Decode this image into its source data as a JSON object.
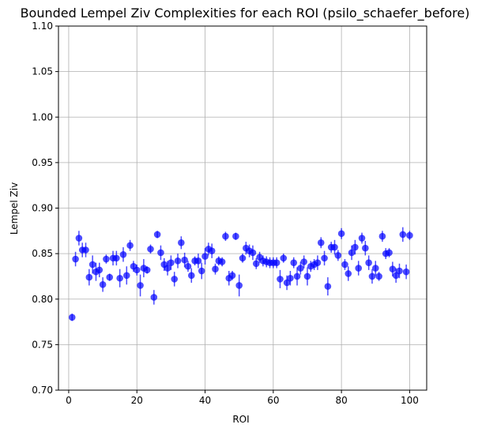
{
  "chart_data": {
    "type": "scatter",
    "title": "Bounded Lempel Ziv Complexities for each ROI (psilo_schaefer_before)",
    "xlabel": "ROI",
    "ylabel": "Lempel Ziv",
    "xlim": [
      -3,
      105
    ],
    "ylim": [
      0.7,
      1.1
    ],
    "xticks": [
      0,
      20,
      40,
      60,
      80,
      100
    ],
    "yticks": [
      0.7,
      0.75,
      0.8,
      0.85,
      0.9,
      0.95,
      1.0,
      1.05,
      1.1
    ],
    "ytick_labels": [
      "0.70",
      "0.75",
      "0.80",
      "0.85",
      "0.90",
      "0.95",
      "1.00",
      "1.05",
      "1.10"
    ],
    "grid": true,
    "marker_color": "#0000ff",
    "marker_alpha": 0.7,
    "error_bars": true,
    "x": [
      1,
      2,
      3,
      4,
      5,
      6,
      7,
      8,
      9,
      10,
      11,
      12,
      13,
      14,
      15,
      16,
      17,
      18,
      19,
      20,
      21,
      22,
      23,
      24,
      25,
      26,
      27,
      28,
      29,
      30,
      31,
      32,
      33,
      34,
      35,
      36,
      37,
      38,
      39,
      40,
      41,
      42,
      43,
      44,
      45,
      46,
      47,
      48,
      49,
      50,
      51,
      52,
      53,
      54,
      55,
      56,
      57,
      58,
      59,
      60,
      61,
      62,
      63,
      64,
      65,
      66,
      67,
      68,
      69,
      70,
      71,
      72,
      73,
      74,
      75,
      76,
      77,
      78,
      79,
      80,
      81,
      82,
      83,
      84,
      85,
      86,
      87,
      88,
      89,
      90,
      91,
      92,
      93,
      94,
      95,
      96,
      97,
      98,
      99,
      100
    ],
    "y": [
      0.78,
      0.844,
      0.867,
      0.854,
      0.854,
      0.824,
      0.838,
      0.83,
      0.832,
      0.816,
      0.844,
      0.824,
      0.845,
      0.845,
      0.823,
      0.849,
      0.826,
      0.859,
      0.836,
      0.832,
      0.815,
      0.834,
      0.832,
      0.855,
      0.802,
      0.871,
      0.851,
      0.838,
      0.834,
      0.84,
      0.822,
      0.842,
      0.862,
      0.843,
      0.836,
      0.826,
      0.842,
      0.842,
      0.831,
      0.847,
      0.855,
      0.853,
      0.833,
      0.842,
      0.841,
      0.869,
      0.823,
      0.826,
      0.869,
      0.815,
      0.845,
      0.856,
      0.853,
      0.851,
      0.839,
      0.846,
      0.842,
      0.841,
      0.84,
      0.84,
      0.84,
      0.822,
      0.845,
      0.818,
      0.823,
      0.84,
      0.825,
      0.834,
      0.841,
      0.825,
      0.836,
      0.838,
      0.84,
      0.862,
      0.845,
      0.814,
      0.857,
      0.857,
      0.848,
      0.872,
      0.838,
      0.828,
      0.851,
      0.857,
      0.834,
      0.867,
      0.856,
      0.84,
      0.825,
      0.834,
      0.825,
      0.869,
      0.85,
      0.851,
      0.833,
      0.826,
      0.831,
      0.871,
      0.83,
      0.87
    ],
    "yerr": [
      0.004,
      0.008,
      0.008,
      0.008,
      0.008,
      0.009,
      0.01,
      0.01,
      0.008,
      0.008,
      0.005,
      0.004,
      0.008,
      0.008,
      0.01,
      0.008,
      0.01,
      0.006,
      0.006,
      0.006,
      0.012,
      0.01,
      0.004,
      0.005,
      0.008,
      0.004,
      0.008,
      0.007,
      0.008,
      0.008,
      0.008,
      0.008,
      0.007,
      0.008,
      0.006,
      0.008,
      0.005,
      0.008,
      0.009,
      0.009,
      0.007,
      0.008,
      0.006,
      0.005,
      0.005,
      0.005,
      0.008,
      0.005,
      0.004,
      0.012,
      0.005,
      0.007,
      0.007,
      0.008,
      0.006,
      0.006,
      0.006,
      0.006,
      0.006,
      0.006,
      0.006,
      0.01,
      0.005,
      0.008,
      0.008,
      0.006,
      0.01,
      0.007,
      0.007,
      0.01,
      0.006,
      0.006,
      0.008,
      0.006,
      0.008,
      0.01,
      0.006,
      0.008,
      0.006,
      0.006,
      0.006,
      0.008,
      0.008,
      0.008,
      0.008,
      0.006,
      0.008,
      0.008,
      0.008,
      0.008,
      0.005,
      0.006,
      0.006,
      0.005,
      0.008,
      0.008,
      0.008,
      0.008,
      0.008,
      0.005
    ]
  }
}
